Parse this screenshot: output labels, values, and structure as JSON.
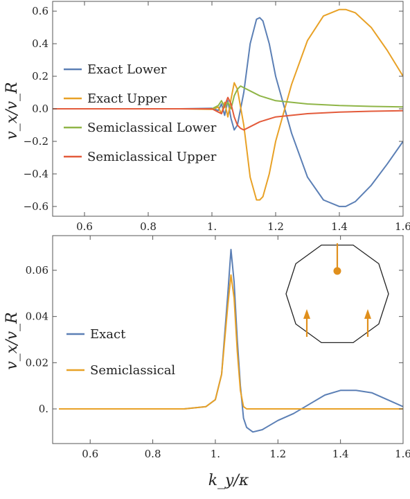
{
  "chart_data": [
    {
      "type": "line",
      "panel": "top",
      "xlabel": "",
      "ylabel": "v_x/v_R",
      "xlim": [
        0.5,
        1.6
      ],
      "ylim": [
        -0.66,
        0.66
      ],
      "xticks": [
        0.6,
        0.8,
        1.0,
        1.2,
        1.4,
        1.6
      ],
      "xtick_labels": [
        "0.6",
        "0.8",
        "1.",
        "1.2",
        "1.4",
        "1.6"
      ],
      "yticks": [
        -0.6,
        -0.4,
        -0.2,
        0.0,
        0.2,
        0.4,
        0.6
      ],
      "ytick_labels": [
        "−0.6",
        "−0.4",
        "−0.2",
        "0.0",
        "0.2",
        "0.4",
        "0.6"
      ],
      "legend_position": "left",
      "grid": false,
      "series": [
        {
          "name": "Exact Lower",
          "color": "#5b7fb5",
          "x": [
            0.5,
            0.9,
            1.0,
            1.02,
            1.03,
            1.04,
            1.05,
            1.06,
            1.07,
            1.08,
            1.1,
            1.12,
            1.14,
            1.15,
            1.16,
            1.18,
            1.2,
            1.25,
            1.3,
            1.35,
            1.4,
            1.42,
            1.45,
            1.5,
            1.55,
            1.6
          ],
          "y": [
            0.0,
            0.0,
            0.003,
            -0.01,
            0.03,
            -0.04,
            0.05,
            -0.06,
            -0.13,
            -0.1,
            0.1,
            0.4,
            0.55,
            0.56,
            0.54,
            0.4,
            0.2,
            -0.15,
            -0.42,
            -0.56,
            -0.6,
            -0.6,
            -0.57,
            -0.47,
            -0.34,
            -0.2
          ]
        },
        {
          "name": "Exact Upper",
          "color": "#e8a126",
          "x": [
            0.5,
            0.9,
            1.0,
            1.02,
            1.03,
            1.04,
            1.05,
            1.06,
            1.07,
            1.08,
            1.1,
            1.12,
            1.14,
            1.15,
            1.16,
            1.18,
            1.2,
            1.25,
            1.3,
            1.35,
            1.4,
            1.42,
            1.45,
            1.5,
            1.55,
            1.6
          ],
          "y": [
            0.0,
            0.0,
            -0.003,
            0.01,
            -0.03,
            0.04,
            -0.05,
            0.06,
            0.16,
            0.12,
            -0.1,
            -0.42,
            -0.56,
            -0.56,
            -0.54,
            -0.4,
            -0.2,
            0.15,
            0.42,
            0.57,
            0.61,
            0.61,
            0.59,
            0.5,
            0.36,
            0.2
          ]
        },
        {
          "name": "Semiclassical Lower",
          "color": "#8fb547",
          "x": [
            0.5,
            0.95,
            1.0,
            1.02,
            1.03,
            1.04,
            1.05,
            1.06,
            1.07,
            1.08,
            1.09,
            1.1,
            1.12,
            1.15,
            1.2,
            1.3,
            1.4,
            1.5,
            1.6
          ],
          "y": [
            0.0,
            0.0,
            0.0,
            0.02,
            0.05,
            0.01,
            0.04,
            0.0,
            0.08,
            0.12,
            0.14,
            0.13,
            0.11,
            0.08,
            0.05,
            0.03,
            0.02,
            0.015,
            0.012
          ]
        },
        {
          "name": "Semiclassical Upper",
          "color": "#e35a3a",
          "x": [
            0.5,
            0.95,
            1.0,
            1.02,
            1.03,
            1.04,
            1.05,
            1.06,
            1.07,
            1.08,
            1.09,
            1.1,
            1.12,
            1.15,
            1.2,
            1.3,
            1.4,
            1.5,
            1.6
          ],
          "y": [
            0.0,
            0.0,
            0.0,
            -0.02,
            -0.03,
            0.02,
            0.07,
            0.03,
            -0.05,
            -0.1,
            -0.12,
            -0.13,
            -0.11,
            -0.08,
            -0.05,
            -0.03,
            -0.02,
            -0.015,
            -0.012
          ]
        }
      ]
    },
    {
      "type": "line",
      "panel": "bottom",
      "xlabel": "k_y/κ",
      "ylabel": "v_x/v_R",
      "xlim": [
        0.48,
        1.6
      ],
      "ylim": [
        -0.015,
        0.075
      ],
      "xticks": [
        0.6,
        0.8,
        1.0,
        1.2,
        1.4,
        1.6
      ],
      "xtick_labels": [
        "0.6",
        "0.8",
        "1.",
        "1.2",
        "1.4",
        "1.6"
      ],
      "yticks": [
        0.0,
        0.02,
        0.04,
        0.06
      ],
      "ytick_labels": [
        "0.",
        "0.02",
        "0.04",
        "0.06"
      ],
      "legend_position": "left",
      "grid": false,
      "series": [
        {
          "name": "Exact",
          "color": "#5b7fb5",
          "x": [
            0.5,
            0.9,
            0.97,
            1.0,
            1.02,
            1.04,
            1.05,
            1.06,
            1.07,
            1.08,
            1.09,
            1.1,
            1.12,
            1.15,
            1.2,
            1.25,
            1.3,
            1.35,
            1.4,
            1.45,
            1.5,
            1.55,
            1.6
          ],
          "y": [
            0.0,
            0.0,
            0.001,
            0.004,
            0.015,
            0.05,
            0.069,
            0.055,
            0.03,
            0.01,
            -0.004,
            -0.008,
            -0.01,
            -0.009,
            -0.005,
            -0.002,
            0.002,
            0.006,
            0.008,
            0.008,
            0.007,
            0.004,
            0.001
          ]
        },
        {
          "name": "Semiclassical",
          "color": "#e8a126",
          "x": [
            0.5,
            0.9,
            0.97,
            1.0,
            1.02,
            1.04,
            1.05,
            1.06,
            1.07,
            1.08,
            1.09,
            1.1,
            1.15,
            1.6
          ],
          "y": [
            0.0,
            0.0,
            0.001,
            0.004,
            0.015,
            0.045,
            0.058,
            0.048,
            0.025,
            0.008,
            0.001,
            0.0,
            0.0,
            0.0
          ]
        }
      ],
      "inset": {
        "shape": "decagon",
        "outline_color": "#222222",
        "marker_color": "#e08f1c"
      }
    }
  ]
}
